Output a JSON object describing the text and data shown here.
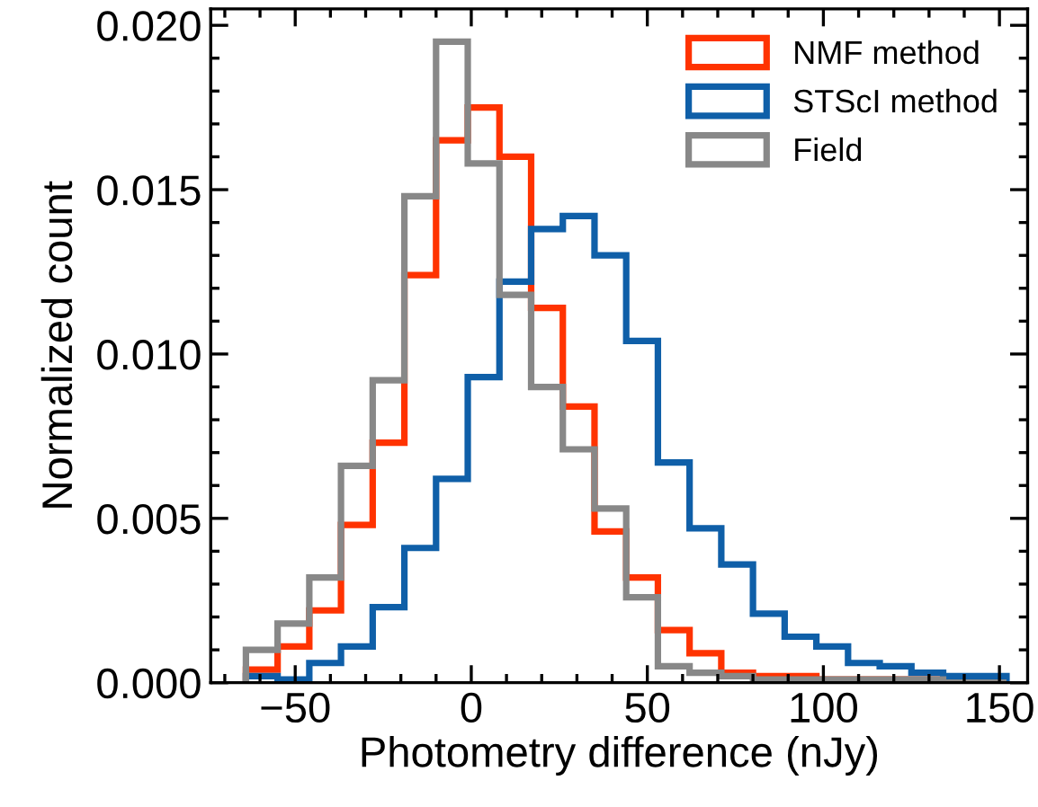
{
  "chart_data": {
    "type": "histogram",
    "xlabel": "Photometry difference (nJy)",
    "ylabel": "Normalized count",
    "bins": [
      -64,
      -55,
      -46,
      -37,
      -28,
      -19,
      -10,
      -1,
      8,
      17,
      26,
      35,
      44,
      53,
      62,
      71,
      80,
      89,
      98,
      107,
      116,
      125,
      134,
      143,
      152
    ],
    "series": [
      {
        "name": "NMF method",
        "color": "#ff3300",
        "values": [
          0.0004,
          0.0011,
          0.0022,
          0.0048,
          0.0073,
          0.0124,
          0.0165,
          0.0175,
          0.016,
          0.0114,
          0.0084,
          0.0046,
          0.0032,
          0.0016,
          0.0009,
          0.0003,
          0.0002,
          0.0002,
          0.0001,
          0.0001,
          0.0001,
          0.0001,
          0,
          0
        ]
      },
      {
        "name": "STScI method",
        "color": "#0f5fa8",
        "values": [
          0.0002,
          0.0001,
          0.0006,
          0.0011,
          0.0023,
          0.0041,
          0.0062,
          0.0093,
          0.0122,
          0.0138,
          0.0142,
          0.013,
          0.0104,
          0.0067,
          0.0047,
          0.0036,
          0.0021,
          0.0014,
          0.0011,
          0.0006,
          0.0005,
          0.0003,
          0.0002,
          0.0002
        ]
      },
      {
        "name": "Field",
        "color": "#888888",
        "values": [
          0.001,
          0.0018,
          0.0032,
          0.0066,
          0.0092,
          0.0148,
          0.0195,
          0.0158,
          0.0118,
          0.009,
          0.0071,
          0.0053,
          0.0026,
          0.0005,
          0.0003,
          0.0002,
          0.0001,
          0.0001,
          0.0001,
          0.0001,
          0.0001,
          0.0001,
          0,
          0
        ]
      }
    ],
    "xlim": [
      -74,
      158
    ],
    "ylim": [
      0,
      0.0205
    ],
    "xticks": [
      -50,
      0,
      50,
      100,
      150
    ],
    "yticks": [
      {
        "value": 0,
        "label": "0.000"
      },
      {
        "value": 0.005,
        "label": "0.005"
      },
      {
        "value": 0.01,
        "label": "0.010"
      },
      {
        "value": 0.015,
        "label": "0.015"
      },
      {
        "value": 0.02,
        "label": "0.020"
      }
    ],
    "legend": "top right",
    "grid": false
  }
}
